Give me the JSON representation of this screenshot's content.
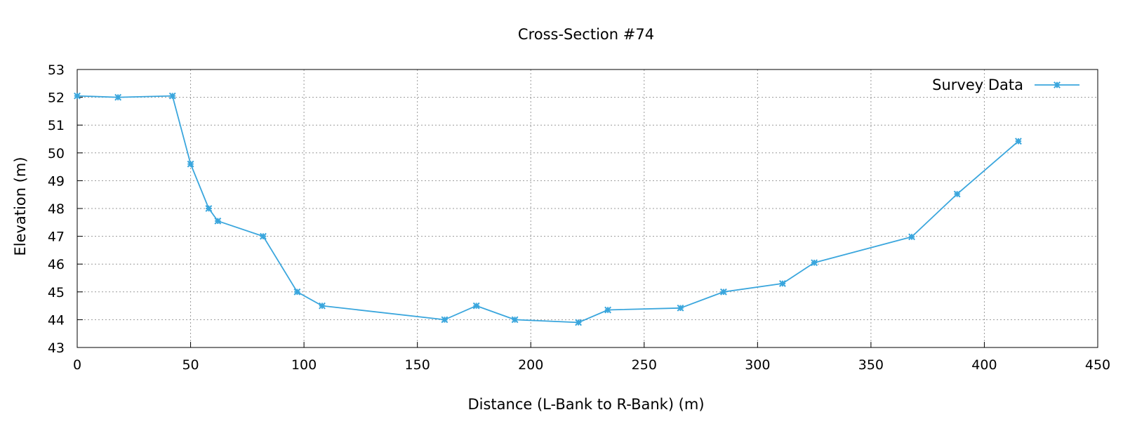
{
  "chart_data": {
    "type": "line",
    "title": "Cross-Section #74",
    "xlabel": "Distance (L-Bank to R-Bank) (m)",
    "ylabel": "Elevation (m)",
    "xlim": [
      0,
      450
    ],
    "ylim": [
      43,
      53
    ],
    "xticks": [
      0,
      50,
      100,
      150,
      200,
      250,
      300,
      350,
      400,
      450
    ],
    "yticks": [
      43,
      44,
      45,
      46,
      47,
      48,
      49,
      50,
      51,
      52,
      53
    ],
    "grid": true,
    "legend": "top-right",
    "series": [
      {
        "name": "Survey Data",
        "color": "#3aa6dd",
        "marker": "asterisk",
        "points": [
          [
            0,
            52.05
          ],
          [
            18,
            52.0
          ],
          [
            42,
            52.05
          ],
          [
            50,
            49.6
          ],
          [
            58,
            48.0
          ],
          [
            62,
            47.55
          ],
          [
            82,
            47.0
          ],
          [
            97,
            45.0
          ],
          [
            108,
            44.5
          ],
          [
            162,
            44.0
          ],
          [
            176,
            44.5
          ],
          [
            193,
            44.0
          ],
          [
            221,
            43.9
          ],
          [
            234,
            44.35
          ],
          [
            266,
            44.42
          ],
          [
            285,
            45.0
          ],
          [
            311,
            45.3
          ],
          [
            325,
            46.05
          ],
          [
            368,
            46.98
          ],
          [
            388,
            48.52
          ],
          [
            415,
            50.42
          ]
        ]
      }
    ]
  }
}
